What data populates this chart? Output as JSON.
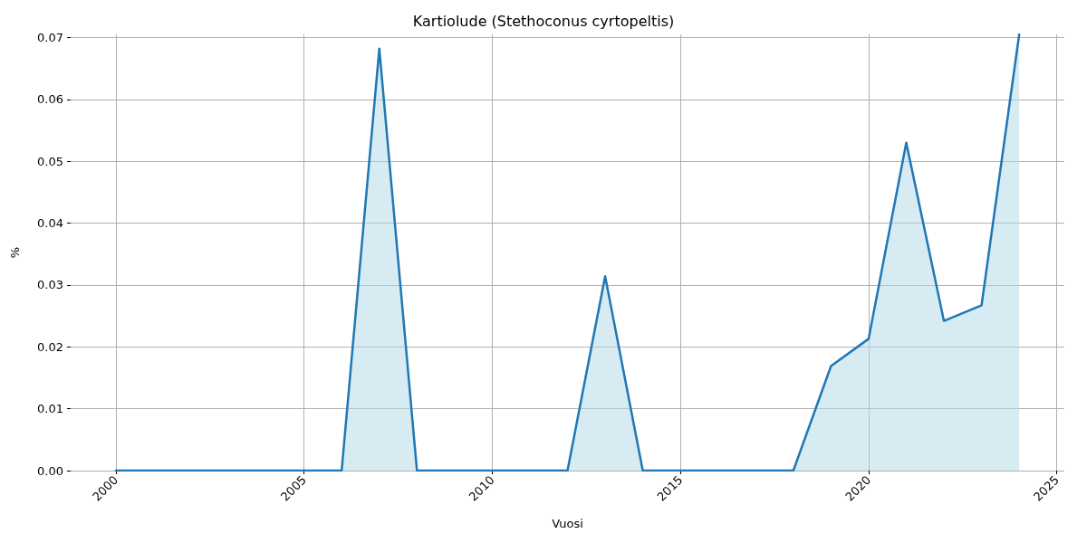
{
  "chart_data": {
    "type": "area",
    "title": "Kartiolude (Stethoconus cyrtopeltis)",
    "xlabel": "Vuosi",
    "ylabel": "%",
    "x": [
      2000,
      2001,
      2002,
      2003,
      2004,
      2005,
      2006,
      2007,
      2008,
      2009,
      2010,
      2011,
      2012,
      2013,
      2014,
      2015,
      2016,
      2017,
      2018,
      2019,
      2020,
      2021,
      2022,
      2023,
      2024
    ],
    "series": [
      {
        "color": "#1f77b4",
        "values": [
          0,
          0,
          0,
          0,
          0,
          0,
          0,
          0.0682,
          0,
          0,
          0,
          0,
          0,
          0.0314,
          0,
          0,
          0,
          0,
          0,
          0.0169,
          0.0213,
          0.053,
          0.0242,
          0.0267,
          0.0705
        ]
      }
    ],
    "xlim": [
      1998.8,
      2025.2
    ],
    "xticks": [
      2000,
      2005,
      2010,
      2015,
      2020,
      2025
    ],
    "ylim": [
      0,
      0.0705
    ],
    "yticks": [
      {
        "value": 0,
        "label": "0.00"
      },
      0.01,
      0.02,
      0.03,
      0.04,
      0.05,
      0.06,
      0.07
    ],
    "grid": true,
    "marker": "none",
    "line_style": "solid"
  }
}
